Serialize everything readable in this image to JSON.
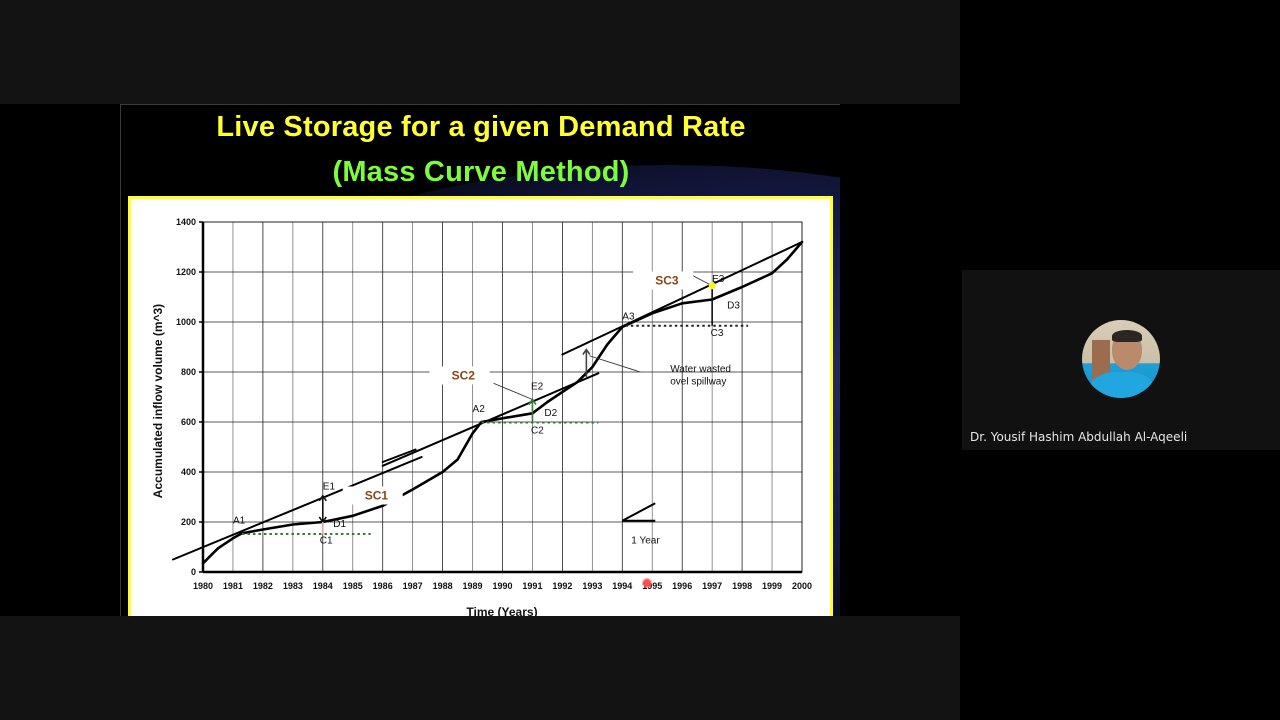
{
  "slide": {
    "title_line1": "Live Storage for a given  Demand Rate",
    "title_line2": "(Mass Curve Method)",
    "title_line1_color": "#ffff33",
    "title_line2_color": "#7CFC3C",
    "frame_border_color": "#ffff33"
  },
  "participant": {
    "name": "Dr. Yousif Hashim Abdullah Al-Aqeeli",
    "avatar": "participant-photo"
  },
  "pointer": {
    "icon": "laser-pointer-icon",
    "color": "#ff4a4a",
    "x_year": 1994.8,
    "y_value": -55
  },
  "chart_data": {
    "type": "line",
    "title": "",
    "xlabel": "Time (Years)",
    "ylabel": "Accumulated inflow volume (m^3)",
    "xlim": [
      1980,
      2000
    ],
    "ylim": [
      0,
      1400
    ],
    "x_ticks": [
      1980,
      1981,
      1982,
      1983,
      1984,
      1985,
      1986,
      1987,
      1988,
      1989,
      1990,
      1991,
      1992,
      1993,
      1994,
      1995,
      1996,
      1997,
      1998,
      1999,
      2000
    ],
    "x_tick_labels": [
      "1980",
      "1981",
      "1982",
      "1983",
      "1984",
      "1985",
      "1986",
      "1987",
      "1988",
      "1989",
      "1990",
      "1991",
      "1992",
      "1993",
      "1994",
      "1995",
      "1996",
      "1997",
      "1998",
      "1999",
      "2000"
    ],
    "y_ticks": [
      0,
      200,
      400,
      600,
      800,
      1000,
      1200,
      1400
    ],
    "y_tick_labels": [
      "0",
      "200",
      "400",
      "600",
      "800",
      "1000",
      "1200",
      "1400"
    ],
    "grid": true,
    "legend": null,
    "series": [
      {
        "name": "Mass inflow curve",
        "x": [
          1980,
          1980.5,
          1981,
          1981.3,
          1982,
          1983,
          1984,
          1985,
          1986,
          1987,
          1988,
          1988.5,
          1989,
          1989.3,
          1990,
          1991,
          1991.5,
          1992,
          1992.5,
          1993,
          1993.5,
          1994,
          1995,
          1996,
          1997,
          1998,
          1999,
          1999.5,
          2000
        ],
        "y": [
          35,
          95,
          135,
          155,
          170,
          190,
          200,
          225,
          265,
          330,
          400,
          450,
          555,
          600,
          615,
          635,
          680,
          720,
          760,
          820,
          910,
          980,
          1035,
          1075,
          1090,
          1140,
          1195,
          1250,
          1320
        ]
      },
      {
        "name": "Demand line 1 (tangent at A1)",
        "x": [
          1979,
          1987.3
        ],
        "y": [
          50,
          460
        ]
      },
      {
        "name": "Demand line 1 extension",
        "x": [
          1986.0,
          1987.1
        ],
        "y": [
          440,
          490
        ]
      },
      {
        "name": "Demand line 2 (tangent at A2)",
        "x": [
          1986.0,
          1993.2
        ],
        "y": [
          425,
          795
        ]
      },
      {
        "name": "Demand line 3 (tangent at A3)",
        "x": [
          1992.0,
          2000
        ],
        "y": [
          870,
          1320
        ]
      }
    ],
    "dotted_lines": [
      {
        "name": "C1 level",
        "x": [
          1981.3,
          1985.6
        ],
        "y": [
          152,
          152
        ],
        "color": "#2e7d32"
      },
      {
        "name": "C2 level",
        "x": [
          1989.3,
          1993.2
        ],
        "y": [
          598,
          598
        ],
        "color": "#2e7d32"
      },
      {
        "name": "C3 level",
        "x": [
          1994.1,
          1998.2
        ],
        "y": [
          985,
          985
        ],
        "color": "#222222"
      }
    ],
    "annotations": [
      {
        "label": "A1",
        "x": 1981.0,
        "y": 195
      },
      {
        "label": "E1",
        "x": 1984.0,
        "y": 330
      },
      {
        "label": "D1",
        "x": 1984.35,
        "y": 180
      },
      {
        "label": "C1",
        "x": 1983.9,
        "y": 115
      },
      {
        "label": "SC1",
        "x": 1985.4,
        "y": 290,
        "color": "#8b4513"
      },
      {
        "label": "A2",
        "x": 1989.0,
        "y": 640
      },
      {
        "label": "E2",
        "x": 1990.95,
        "y": 730
      },
      {
        "label": "D2",
        "x": 1991.4,
        "y": 625
      },
      {
        "label": "C2",
        "x": 1990.95,
        "y": 555
      },
      {
        "label": "SC2",
        "x": 1988.3,
        "y": 770,
        "color": "#8b4513"
      },
      {
        "label": "A3",
        "x": 1994.0,
        "y": 1010
      },
      {
        "label": "E3",
        "x": 1997.0,
        "y": 1160
      },
      {
        "label": "D3",
        "x": 1997.5,
        "y": 1055
      },
      {
        "label": "C3",
        "x": 1996.95,
        "y": 945
      },
      {
        "label": "SC3",
        "x": 1995.1,
        "y": 1150,
        "color": "#8b4513"
      },
      {
        "label": "Water wasted",
        "x": 1995.6,
        "y": 800
      },
      {
        "label": "ovel spillway",
        "x": 1995.6,
        "y": 750
      },
      {
        "label": "1 Year",
        "x": 1994.3,
        "y": 115
      }
    ],
    "storage_segments": [
      {
        "name": "E1-D1",
        "x": 1984.0,
        "y_top": 305,
        "y_bottom": 200,
        "arrow": "double",
        "color": "#111111"
      },
      {
        "name": "D1-C1",
        "x": 1984.0,
        "y_top": 200,
        "y_bottom": 152,
        "color": "#f4a0a0"
      },
      {
        "name": "E2-D2",
        "x": 1991.0,
        "y_top": 690,
        "y_bottom": 635,
        "arrow": "up",
        "color": "#2e7d32"
      },
      {
        "name": "D2-C2",
        "x": 1991.0,
        "y_top": 635,
        "y_bottom": 598,
        "color": "#2e7d32"
      },
      {
        "name": "E3-C3",
        "x": 1997.0,
        "y_top": 1140,
        "y_bottom": 985,
        "color": "#111111"
      },
      {
        "name": "spillway gap",
        "x": 1992.8,
        "y_top": 890,
        "y_bottom": 780,
        "arrow": "up",
        "color": "#444444"
      }
    ],
    "pointer_lines": [
      {
        "name": "SC2 leader",
        "x": [
          1989.7,
          1991.0
        ],
        "y": [
          755,
          690
        ]
      },
      {
        "name": "SC3 leader",
        "x": [
          1996.2,
          1997.0
        ],
        "y": [
          1195,
          1145
        ]
      },
      {
        "name": "spillway leader",
        "x": [
          1994.6,
          1992.9
        ],
        "y": [
          800,
          865
        ]
      }
    ],
    "scale_indicator": {
      "label": "1 Year",
      "x0": 1994.0,
      "x1": 1995.1,
      "y0": 205,
      "y1": 275
    }
  }
}
